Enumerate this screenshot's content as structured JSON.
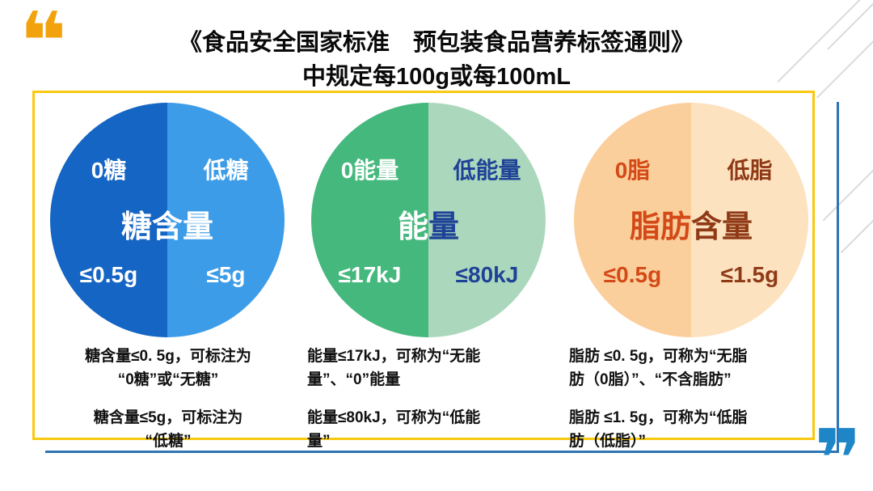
{
  "slide": {
    "title_line1": "《食品安全国家标准　预包装食品营养标签通则》",
    "title_line2": "中规定每100g或每100mL"
  },
  "decorations": {
    "open_quote": "❝",
    "close_quote": "❞",
    "open_quote_color": "#F2A20C",
    "close_quote_color": "#1E86C7",
    "frame_yellow_color": "#FAC90F",
    "frame_blue_color": "#2E74B5"
  },
  "circles": [
    {
      "name": "sugar",
      "left_label": "0糖",
      "right_label": "低糖",
      "center_left": "糖含量",
      "center_right": "",
      "left_value": "≤0.5g",
      "right_value": "≤5g",
      "left_color": "#1565C4",
      "right_color": "#3D9CE8",
      "left_text_color": "#FFFFFF",
      "right_text_color": "#FFFFFF"
    },
    {
      "name": "energy",
      "left_label": "0能量",
      "right_label": "低能量",
      "center_left": "能",
      "center_right": "量",
      "left_value": "≤17kJ",
      "right_value": "≤80kJ",
      "left_color": "#45B87D",
      "right_color": "#ABD8BC",
      "left_text_color": "#FFFFFF",
      "right_text_color": "#1F4297"
    },
    {
      "name": "fat",
      "left_label": "0脂",
      "right_label": "低脂",
      "center_left": "脂肪",
      "center_right": "含量",
      "left_value": "≤0.5g",
      "right_value": "≤1.5g",
      "left_color": "#FBCF9B",
      "right_color": "#FDE2C0",
      "left_text_color": "#D34A18",
      "right_text_color": "#8F3A16"
    }
  ],
  "notes": [
    {
      "para1_line1": "糖含量≤0. 5g，可标注为",
      "para1_line2": "“0糖”或“无糖”",
      "para2_line1": "糖含量≤5g，可标注为",
      "para2_line2": "“低糖”"
    },
    {
      "para1_line1": "能量≤17kJ，可称为“无能",
      "para1_line2": "量”、“0”能量",
      "para2_line1": "能量≤80kJ，可称为“低能",
      "para2_line2": "量”"
    },
    {
      "para1_line1": "脂肪 ≤0. 5g，可称为“无脂",
      "para1_line2": "肪（0脂）”、“不含脂肪”",
      "para2_line1": "脂肪 ≤1. 5g，可称为“低脂",
      "para2_line2": "肪（低脂）”"
    }
  ]
}
